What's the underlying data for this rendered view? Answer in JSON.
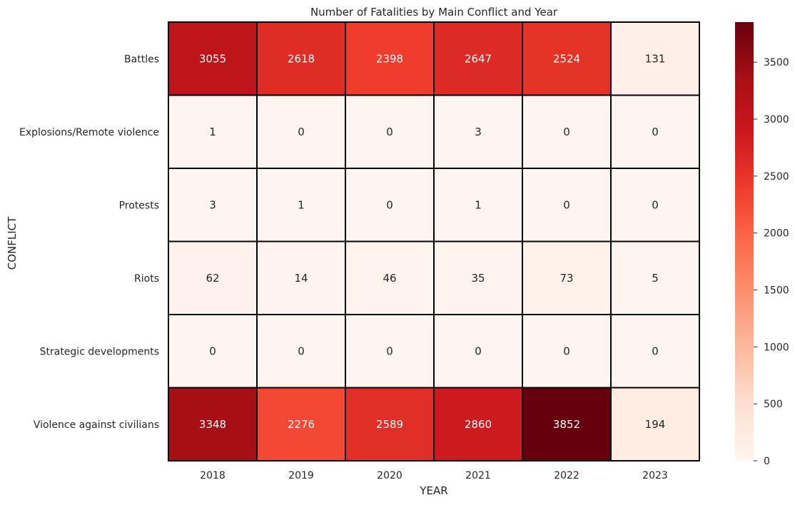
{
  "chart_data": {
    "type": "heatmap",
    "title": "Number of Fatalities by Main Conflict and Year",
    "xlabel": "YEAR",
    "ylabel": "CONFLICT",
    "x": [
      "2018",
      "2019",
      "2020",
      "2021",
      "2022",
      "2023"
    ],
    "y": [
      "Battles",
      "Explosions/Remote violence",
      "Protests",
      "Riots",
      "Strategic developments",
      "Violence against civilians"
    ],
    "values": [
      [
        3055,
        2618,
        2398,
        2647,
        2524,
        131
      ],
      [
        1,
        0,
        0,
        3,
        0,
        0
      ],
      [
        3,
        1,
        0,
        1,
        0,
        0
      ],
      [
        62,
        14,
        46,
        35,
        73,
        5
      ],
      [
        0,
        0,
        0,
        0,
        0,
        0
      ],
      [
        3348,
        2276,
        2589,
        2860,
        3852,
        194
      ]
    ],
    "colormap": "Reds",
    "colorbar": {
      "min": 0,
      "max": 3852,
      "ticks": [
        0,
        500,
        1000,
        1500,
        2000,
        2500,
        3000,
        3500
      ]
    },
    "annotations": true,
    "cell_border_color": "#000000",
    "grid": false
  }
}
